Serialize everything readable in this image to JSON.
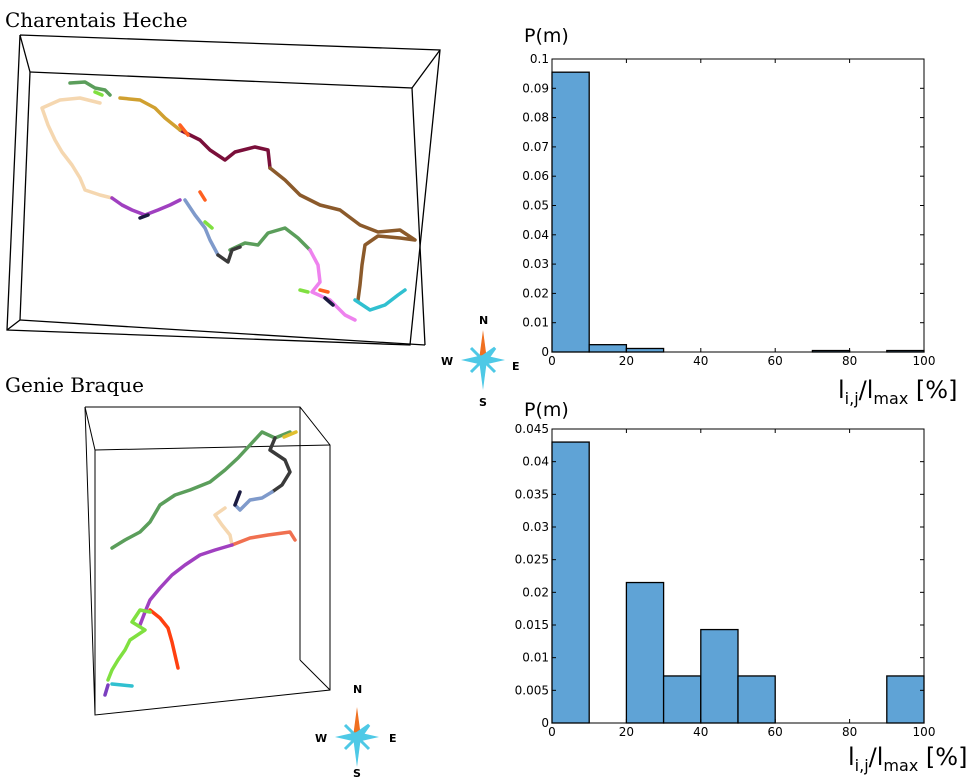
{
  "panels": [
    {
      "title": "Charentais Heche"
    },
    {
      "title": "Genie Braque"
    }
  ],
  "compass": {
    "north": "N",
    "south": "S",
    "west": "W",
    "east": "E"
  },
  "track_colors": [
    "#f5d7b0",
    "#5b9e5b",
    "#7a0f3a",
    "#8b5a2b",
    "#ee82ee",
    "#7f9acb",
    "#3a3a3a",
    "#e0c030",
    "#1a1a40",
    "#ff6020",
    "#a040c0",
    "#80e040",
    "#ff4010",
    "#30c0d0"
  ],
  "chart_data": [
    {
      "type": "bar",
      "ylabel": "P(m)",
      "xlabel": "l",
      "xlabel_sub": "i,j",
      "xlabel_mid": "/l",
      "xlabel_sub2": "max",
      "xlabel_unit": " [%]",
      "bin_edges": [
        0,
        10,
        20,
        30,
        40,
        50,
        60,
        70,
        80,
        90,
        100
      ],
      "values": [
        0.0955,
        0.0025,
        0.0012,
        0.0,
        0.0,
        0.0,
        0.0,
        0.0005,
        0.0,
        0.0005
      ],
      "xlim": [
        0,
        100
      ],
      "ylim": [
        0,
        0.1
      ],
      "xticks": [
        0,
        20,
        40,
        60,
        80,
        100
      ],
      "xtick_labels": [
        "0",
        "20",
        "40",
        "60",
        "80",
        "100"
      ],
      "yticks": [
        0,
        0.01,
        0.02,
        0.03,
        0.04,
        0.05,
        0.06,
        0.07,
        0.08,
        0.09,
        0.1
      ],
      "ytick_labels": [
        "0",
        "0.01",
        "0.02",
        "0.03",
        "0.04",
        "0.05",
        "0.06",
        "0.07",
        "0.08",
        "0.09",
        "0.1"
      ],
      "bar_color": "#5fa3d6",
      "grid": false
    },
    {
      "type": "bar",
      "ylabel": "P(m)",
      "xlabel": "l",
      "xlabel_sub": "i,j",
      "xlabel_mid": "/l",
      "xlabel_sub2": "max",
      "xlabel_unit": " [%]",
      "bin_edges": [
        0,
        10,
        20,
        30,
        40,
        50,
        60,
        70,
        80,
        90,
        100
      ],
      "values": [
        0.043,
        0.0,
        0.0215,
        0.0072,
        0.0143,
        0.0072,
        0.0,
        0.0,
        0.0,
        0.0072
      ],
      "xlim": [
        0,
        100
      ],
      "ylim": [
        0,
        0.045
      ],
      "xticks": [
        0,
        20,
        40,
        60,
        80,
        100
      ],
      "xtick_labels": [
        "0",
        "20",
        "40",
        "60",
        "80",
        "100"
      ],
      "yticks": [
        0,
        0.005,
        0.01,
        0.015,
        0.02,
        0.025,
        0.03,
        0.035,
        0.04,
        0.045
      ],
      "ytick_labels": [
        "0",
        "0.005",
        "0.01",
        "0.015",
        "0.02",
        "0.025",
        "0.03",
        "0.035",
        "0.04",
        "0.045"
      ],
      "bar_color": "#5fa3d6",
      "grid": false
    }
  ]
}
